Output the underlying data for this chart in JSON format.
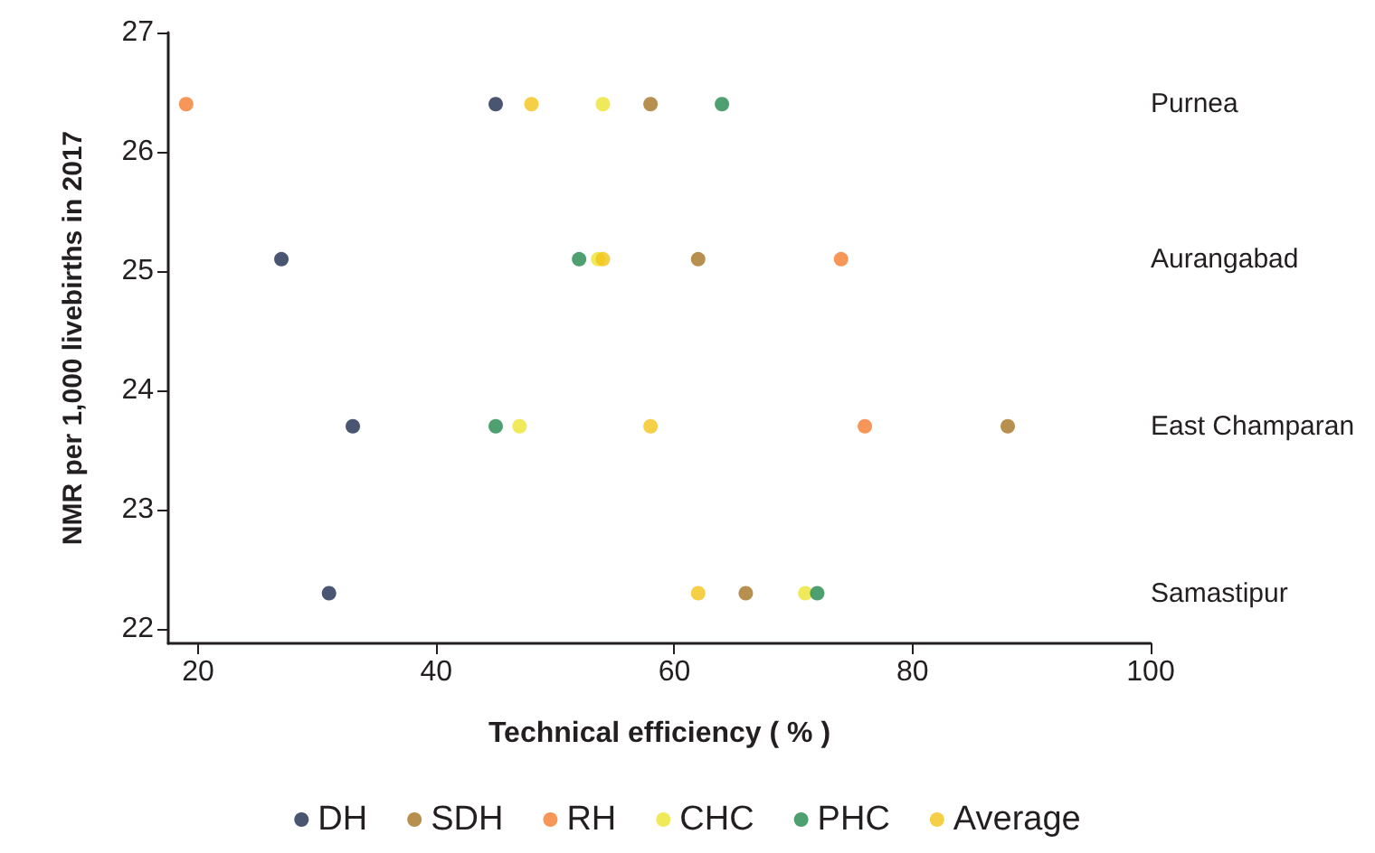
{
  "chart_data": {
    "type": "scatter",
    "xlabel": "Technical efficiency ( % )",
    "ylabel": "NMR per 1,000 livebirths in 2017",
    "xlim": [
      17.5,
      100
    ],
    "xticks": [
      20,
      40,
      60,
      80,
      100
    ],
    "ylim": [
      21.88,
      27
    ],
    "yticks": [
      22,
      23,
      24,
      25,
      26,
      27
    ],
    "grid": false,
    "legend": "bottom",
    "marker": "circle",
    "series": [
      {
        "name": "DH",
        "color": "#1b2a4e",
        "x": [
          45,
          27,
          33,
          31
        ],
        "values": [
          26.4,
          25.1,
          23.7,
          22.3
        ]
      },
      {
        "name": "SDH",
        "color": "#a57424",
        "x": [
          58,
          62,
          88,
          66
        ],
        "values": [
          26.4,
          25.1,
          23.7,
          22.3
        ]
      },
      {
        "name": "RH",
        "color": "#f47c30",
        "x": [
          19,
          74,
          76
        ],
        "values": [
          26.4,
          25.1,
          23.7
        ]
      },
      {
        "name": "CHC",
        "color": "#ece331",
        "x": [
          54,
          53.6,
          47,
          71
        ],
        "values": [
          26.4,
          25.1,
          23.7,
          22.3
        ]
      },
      {
        "name": "PHC",
        "color": "#23884e",
        "x": [
          64,
          52,
          45,
          72
        ],
        "values": [
          26.4,
          25.1,
          23.7,
          22.3
        ]
      },
      {
        "name": "Average",
        "color": "#f2c318",
        "x": [
          48,
          54,
          58,
          62
        ],
        "values": [
          26.4,
          25.1,
          23.7,
          22.3
        ]
      }
    ],
    "annotations": [
      "Purnea",
      "Aurangabad",
      "East Champaran",
      "Samastipur"
    ]
  }
}
